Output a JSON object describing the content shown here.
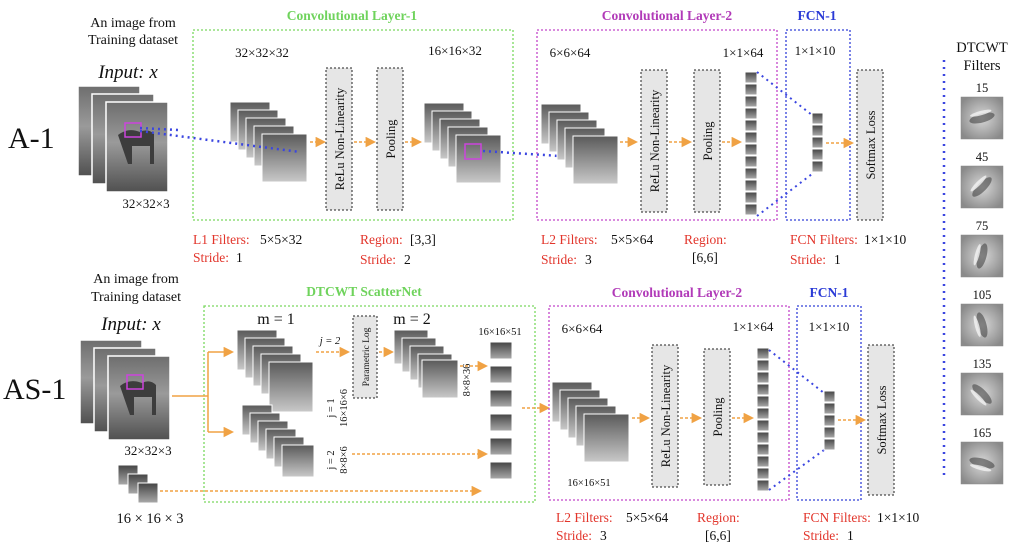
{
  "rows": [
    {
      "label": "A-1",
      "input_caption_line1": "An image from",
      "input_caption_line2": "Training dataset",
      "input_label": "Input: x",
      "input_size": "32×32×3",
      "conv1": {
        "title": "Convolutional Layer-1",
        "dim_in": "32×32×32",
        "dim_out": "16×16×32",
        "relu": "ReLu Non-Linearity",
        "pool": "Pooling",
        "filters_label": "L1 Filters:",
        "filters_value": "5×5×32",
        "stride_label": "Stride:",
        "stride_value": "1",
        "region_label": "Region:",
        "region_value": "[3,3]",
        "stride2_label": "Stride:",
        "stride2_value": "2"
      },
      "conv2": {
        "title": "Convolutional Layer-2",
        "dim_in": "6×6×64",
        "dim_out": "1×1×64",
        "relu": "ReLu Non-Linearity",
        "pool": "Pooling",
        "filters_label": "L2 Filters:",
        "filters_value": "5×5×64",
        "stride_label": "Stride:",
        "stride_value": "3",
        "region_label": "Region:",
        "region_value": "[6,6]"
      },
      "fcn": {
        "title": "FCN-1",
        "dim": "1×1×10",
        "softmax": "Softmax Loss",
        "filters_label": "FCN Filters:",
        "filters_value": "1×1×10",
        "stride_label": "Stride:",
        "stride_value": "1"
      }
    },
    {
      "label": "AS-1",
      "input_caption_line1": "An image from",
      "input_caption_line2": "Training dataset",
      "input_label": "Input: x",
      "input_size": "32×32×3",
      "lowpass_size": "16 × 16 × 3",
      "scatter": {
        "title": "DTCWT ScatterNet",
        "m1": "m = 1",
        "m2": "m = 2",
        "j2_top": "j = 2",
        "param_log": "Parametric Log",
        "j1_label": "j = 1",
        "j1_dim": "16×16×6",
        "j2_label": "j = 2",
        "j2_dim": "8×8×6",
        "m2_dim": "8×8×36",
        "concat_dim": "16×16×51"
      },
      "conv2": {
        "title": "Convolutional Layer-2",
        "dim_in": "6×6×64",
        "dim_out": "1×1×64",
        "dim_bottom": "16×16×51",
        "relu": "ReLu Non-Linearity",
        "pool": "Pooling",
        "filters_label": "L2 Filters:",
        "filters_value": "5×5×64",
        "stride_label": "Stride:",
        "stride_value": "3",
        "region_label": "Region:",
        "region_value": "[6,6]"
      },
      "fcn": {
        "title": "FCN-1",
        "dim": "1×1×10",
        "softmax": "Softmax Loss",
        "filters_label": "FCN Filters:",
        "filters_value": "1×1×10",
        "stride_label": "Stride:",
        "stride_value": "1"
      }
    }
  ],
  "filters_panel": {
    "title_line1": "DTCWT",
    "title_line2": "Filters",
    "angles": [
      "15",
      "45",
      "75",
      "105",
      "135",
      "165"
    ]
  },
  "colors": {
    "conv1_border": "#7ad85f",
    "conv2_border": "#c246c9",
    "fcn_border": "#3340d8",
    "arrow": "#f0a244",
    "red_text": "#e2352b",
    "dotted_blue": "#3b46e0",
    "highlight": "#cc44dd"
  }
}
